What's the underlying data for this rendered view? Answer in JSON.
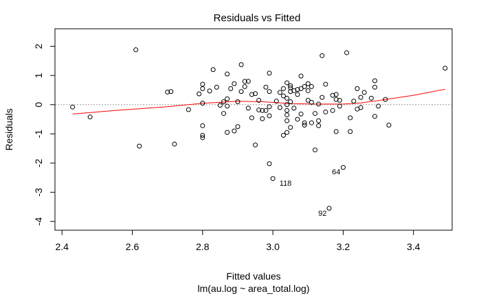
{
  "chart_data": {
    "type": "scatter",
    "title": "Residuals vs Fitted",
    "xlabel": "Fitted values",
    "subtitle": "lm(au.log ~ area_total.log)",
    "ylabel": "Residuals",
    "xlim": [
      2.38,
      3.51
    ],
    "ylim": [
      -4.3,
      2.6
    ],
    "xticks": [
      2.4,
      2.6,
      2.8,
      3.0,
      3.2,
      3.4
    ],
    "xtick_labels": [
      "2.4",
      "2.6",
      "2.8",
      "3.0",
      "3.2",
      "3.4"
    ],
    "yticks": [
      -4,
      -3,
      -2,
      -1,
      0,
      1,
      2
    ],
    "ytick_labels": [
      "-4",
      "-3",
      "-2",
      "-1",
      "0",
      "1",
      "2"
    ],
    "grid": false,
    "colors": {
      "points": "#000000",
      "smoother": "#ff0000",
      "reference": "#999999"
    },
    "reference_line": {
      "y": 0,
      "style": "dotted"
    },
    "points": [
      [
        2.43,
        -0.08
      ],
      [
        2.48,
        -0.42
      ],
      [
        2.61,
        1.88
      ],
      [
        2.62,
        -1.42
      ],
      [
        2.7,
        0.43
      ],
      [
        2.71,
        0.45
      ],
      [
        2.72,
        -1.35
      ],
      [
        2.76,
        -0.17
      ],
      [
        2.79,
        0.37
      ],
      [
        2.8,
        0.55
      ],
      [
        2.8,
        0.7
      ],
      [
        2.8,
        0.05
      ],
      [
        2.8,
        -0.72
      ],
      [
        2.8,
        -1.05
      ],
      [
        2.8,
        -1.13
      ],
      [
        2.82,
        0.47
      ],
      [
        2.83,
        1.2
      ],
      [
        2.84,
        0.6
      ],
      [
        2.85,
        -0.02
      ],
      [
        2.86,
        0.1
      ],
      [
        2.86,
        -0.3
      ],
      [
        2.87,
        1.05
      ],
      [
        2.87,
        0.2
      ],
      [
        2.87,
        -0.05
      ],
      [
        2.87,
        -0.95
      ],
      [
        2.88,
        0.55
      ],
      [
        2.89,
        0.72
      ],
      [
        2.89,
        -0.9
      ],
      [
        2.9,
        0.1
      ],
      [
        2.9,
        -0.75
      ],
      [
        2.91,
        1.37
      ],
      [
        2.91,
        0.45
      ],
      [
        2.92,
        0.8
      ],
      [
        2.92,
        0.62
      ],
      [
        2.93,
        0.8
      ],
      [
        2.93,
        -0.12
      ],
      [
        2.94,
        0.35
      ],
      [
        2.94,
        -0.45
      ],
      [
        2.95,
        0.38
      ],
      [
        2.95,
        -1.38
      ],
      [
        2.96,
        0.15
      ],
      [
        2.96,
        -0.18
      ],
      [
        2.97,
        -0.2
      ],
      [
        2.97,
        -0.48
      ],
      [
        2.98,
        0.6
      ],
      [
        2.98,
        -0.2
      ],
      [
        2.99,
        1.08
      ],
      [
        2.99,
        -0.07
      ],
      [
        2.99,
        0.45
      ],
      [
        2.99,
        -0.38
      ],
      [
        2.99,
        -2.02
      ],
      [
        3.0,
        -2.53
      ],
      [
        3.01,
        0.12
      ],
      [
        3.02,
        0.42
      ],
      [
        3.02,
        -0.1
      ],
      [
        3.03,
        0.3
      ],
      [
        3.03,
        0.55
      ],
      [
        3.03,
        -1.05
      ],
      [
        3.04,
        0.75
      ],
      [
        3.04,
        0.22
      ],
      [
        3.04,
        0.0
      ],
      [
        3.04,
        -0.2
      ],
      [
        3.04,
        -0.35
      ],
      [
        3.04,
        -0.55
      ],
      [
        3.04,
        -0.95
      ],
      [
        3.05,
        0.65
      ],
      [
        3.05,
        0.58
      ],
      [
        3.05,
        0.45
      ],
      [
        3.05,
        0.1
      ],
      [
        3.05,
        -0.78
      ],
      [
        3.06,
        0.48
      ],
      [
        3.06,
        -0.12
      ],
      [
        3.07,
        0.52
      ],
      [
        3.07,
        0.35
      ],
      [
        3.07,
        -0.5
      ],
      [
        3.08,
        0.98
      ],
      [
        3.08,
        0.55
      ],
      [
        3.08,
        -0.32
      ],
      [
        3.09,
        0.62
      ],
      [
        3.09,
        -0.62
      ],
      [
        3.09,
        -0.7
      ],
      [
        3.1,
        0.72
      ],
      [
        3.1,
        0.48
      ],
      [
        3.1,
        0.15
      ],
      [
        3.11,
        0.62
      ],
      [
        3.11,
        0.08
      ],
      [
        3.11,
        -0.62
      ],
      [
        3.12,
        -0.3
      ],
      [
        3.12,
        -1.55
      ],
      [
        3.13,
        0.02
      ],
      [
        3.13,
        -0.55
      ],
      [
        3.13,
        -0.72
      ],
      [
        3.14,
        1.68
      ],
      [
        3.14,
        0.25
      ],
      [
        3.15,
        0.7
      ],
      [
        3.15,
        -0.25
      ],
      [
        3.16,
        -3.55
      ],
      [
        3.17,
        0.32
      ],
      [
        3.17,
        -0.2
      ],
      [
        3.18,
        0.35
      ],
      [
        3.18,
        0.18
      ],
      [
        3.18,
        -0.92
      ],
      [
        3.19,
        0.15
      ],
      [
        3.19,
        -0.05
      ],
      [
        3.2,
        -2.15
      ],
      [
        3.21,
        1.78
      ],
      [
        3.22,
        -0.45
      ],
      [
        3.22,
        -0.92
      ],
      [
        3.23,
        0.12
      ],
      [
        3.24,
        0.55
      ],
      [
        3.24,
        -0.15
      ],
      [
        3.25,
        0.25
      ],
      [
        3.25,
        -0.1
      ],
      [
        3.26,
        0.42
      ],
      [
        3.28,
        0.22
      ],
      [
        3.29,
        0.82
      ],
      [
        3.29,
        0.6
      ],
      [
        3.29,
        -0.4
      ],
      [
        3.3,
        -0.05
      ],
      [
        3.32,
        0.18
      ],
      [
        3.33,
        -0.7
      ],
      [
        3.49,
        1.25
      ]
    ],
    "smoother": [
      [
        2.43,
        -0.32
      ],
      [
        2.55,
        -0.2
      ],
      [
        2.7,
        -0.07
      ],
      [
        2.8,
        0.05
      ],
      [
        2.9,
        0.12
      ],
      [
        2.97,
        0.1
      ],
      [
        3.05,
        0.04
      ],
      [
        3.12,
        0.02
      ],
      [
        3.2,
        0.02
      ],
      [
        3.25,
        0.06
      ],
      [
        3.3,
        0.14
      ],
      [
        3.4,
        0.32
      ],
      [
        3.49,
        0.53
      ]
    ],
    "annotations": [
      {
        "text": "118",
        "x": 3.036,
        "y": -2.68
      },
      {
        "text": "64",
        "x": 3.18,
        "y": -2.3
      },
      {
        "text": "92",
        "x": 3.141,
        "y": -3.72
      }
    ]
  }
}
